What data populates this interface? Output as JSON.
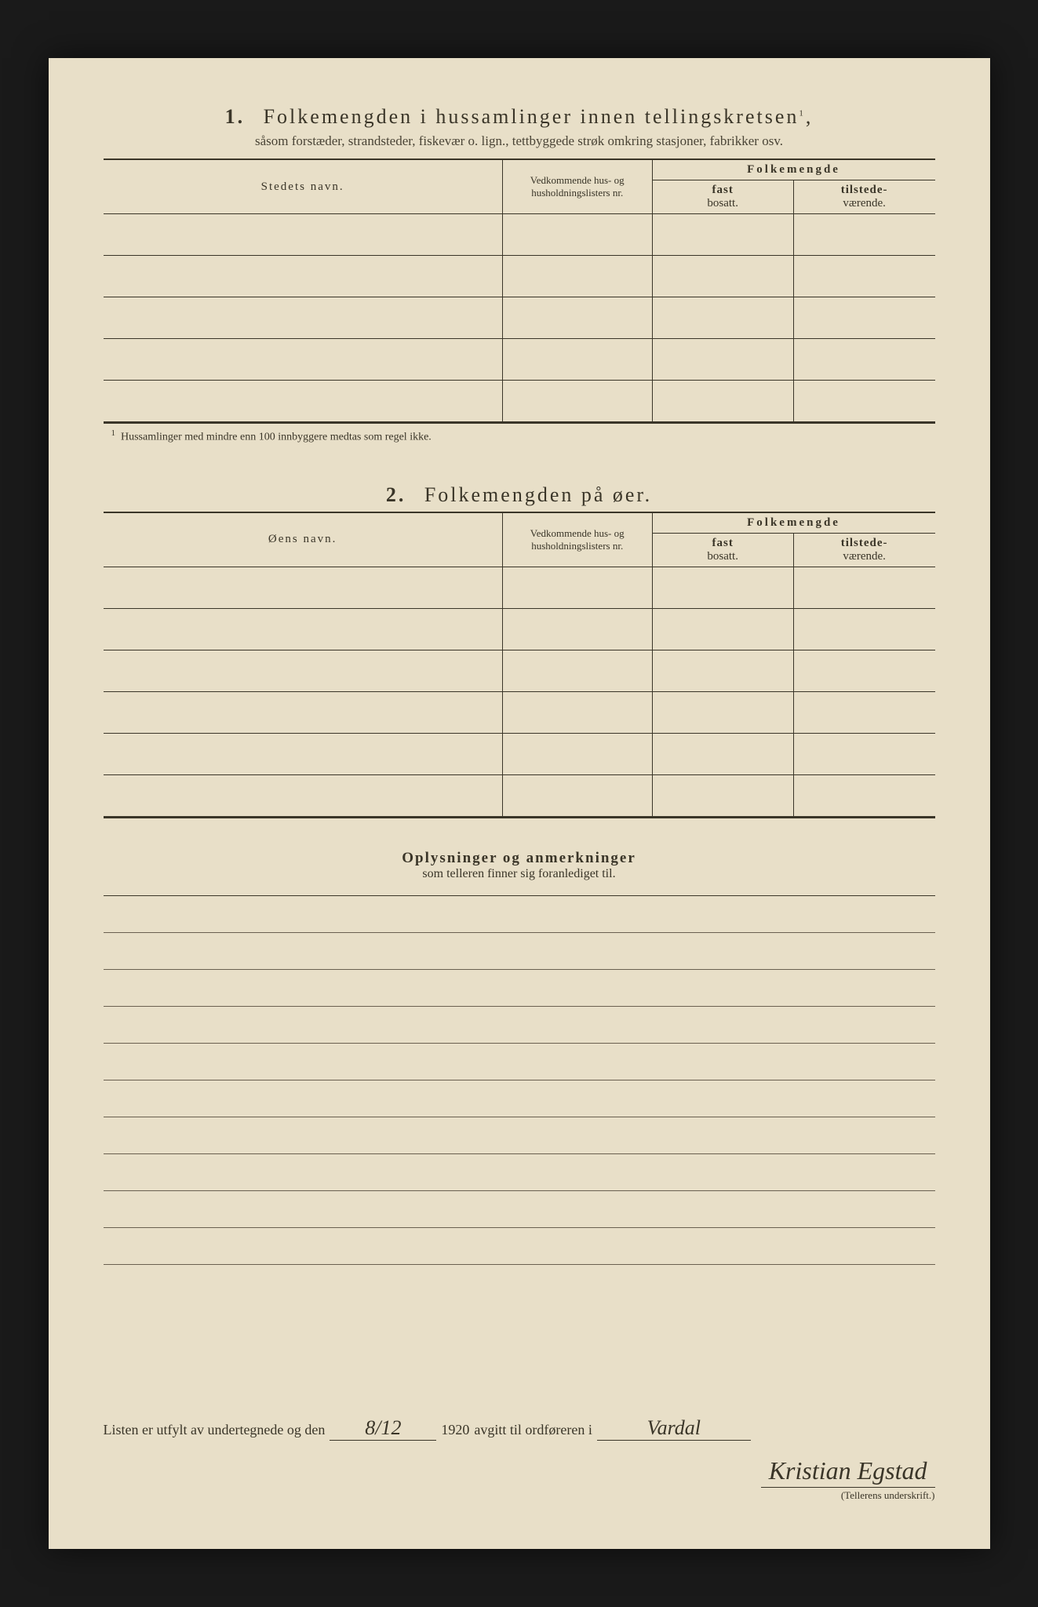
{
  "section1": {
    "number": "1.",
    "title": "Folkemengden i hussamlinger innen tellingskretsen",
    "title_sup": "1",
    "subtitle": "såsom forstæder, strandsteder, fiskevær o. lign., tettbyggede strøk omkring stasjoner, fabrikker osv.",
    "col_name": "Stedets navn.",
    "col_lists": "Vedkommende hus- og husholdningslisters nr.",
    "col_group": "Folkemengde",
    "col_fast_b": "fast",
    "col_fast": "bosatt.",
    "col_tilst_b": "tilstede-",
    "col_tilst": "værende.",
    "row_count": 5,
    "footnote_sup": "1",
    "footnote": "Hussamlinger med mindre enn 100 innbyggere medtas som regel ikke."
  },
  "section2": {
    "number": "2.",
    "title": "Folkemengden på øer.",
    "col_name": "Øens navn.",
    "col_lists": "Vedkommende hus- og husholdningslisters nr.",
    "col_group": "Folkemengde",
    "col_fast_b": "fast",
    "col_fast": "bosatt.",
    "col_tilst_b": "tilstede-",
    "col_tilst": "værende.",
    "row_count": 6
  },
  "remarks": {
    "title": "Oplysninger og anmerkninger",
    "subtitle": "som telleren finner sig foranlediget til.",
    "line_count": 10
  },
  "footer": {
    "text1": "Listen er utfylt av undertegnede og den",
    "date": "8/12",
    "year": "1920",
    "text2": "avgitt til ordføreren i",
    "place": "Vardal",
    "signature": "Kristian Egstad",
    "sig_label": "(Tellerens underskrift.)"
  },
  "colors": {
    "paper": "#e8dfc8",
    "ink": "#3a3528",
    "bg": "#1a1a1a"
  }
}
